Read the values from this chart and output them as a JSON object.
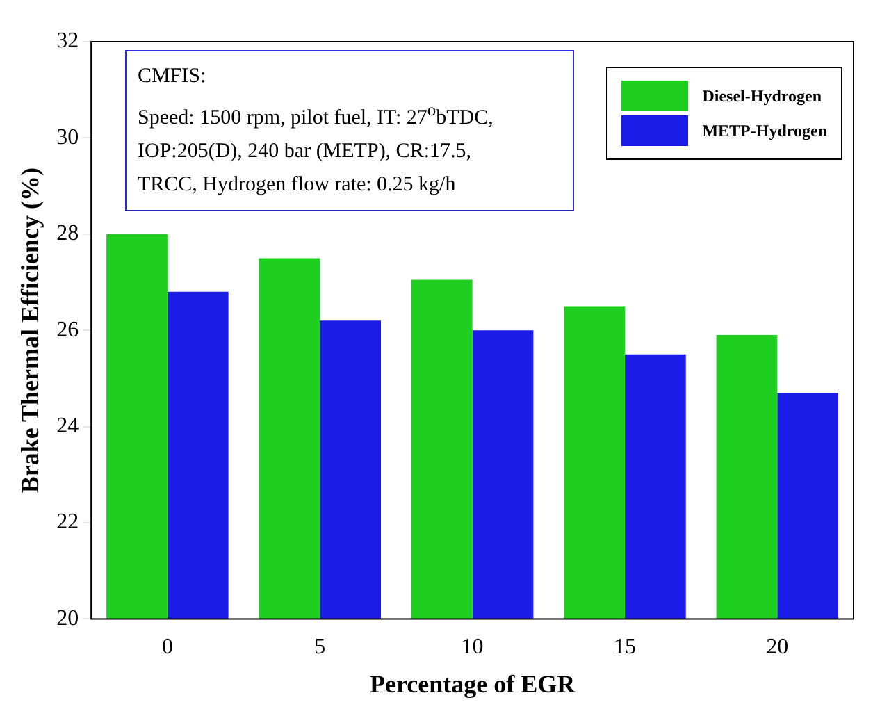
{
  "chart_data": {
    "type": "bar",
    "xlabel": "Percentage of EGR",
    "ylabel": "Brake Thermal Efficiency (%)",
    "categories": [
      "0",
      "5",
      "10",
      "15",
      "20"
    ],
    "series": [
      {
        "name": "Diesel-Hydrogen",
        "color": "#1fcf1f",
        "values": [
          28.0,
          27.5,
          27.05,
          26.5,
          25.9
        ]
      },
      {
        "name": "METP-Hydrogen",
        "color": "#1c1ce8",
        "values": [
          26.8,
          26.2,
          26.0,
          25.5,
          24.7
        ]
      }
    ],
    "ylim": [
      20,
      32
    ],
    "yticks": [
      20,
      22,
      24,
      26,
      28,
      30,
      32
    ],
    "grid": false,
    "legend": "top right",
    "annotations": [
      "CMFIS:",
      "Speed: 1500 rpm, pilot fuel, IT: 27$^{o}$bTDC,",
      "IOP:205(D), 240 bar (METP), CR:17.5,",
      "TRCC, Hydrogen flow rate: 0.25 kg/h"
    ]
  }
}
